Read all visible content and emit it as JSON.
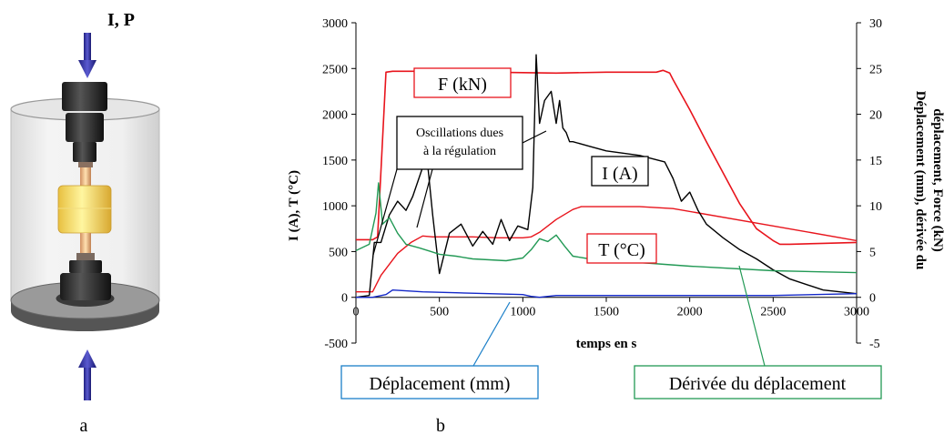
{
  "panel_a": {
    "top_label": "I, P",
    "caption": "a"
  },
  "panel_b": {
    "caption": "b"
  },
  "chart_data": {
    "type": "line",
    "title": "",
    "xlabel": "temps en s",
    "ylabel_left": "I (A), T (°C)",
    "ylabel_right_lines": [
      "Déplacement (mm), dérivée du",
      "déplacement, Force (kN)"
    ],
    "xlim": [
      0,
      3000
    ],
    "ylim_left": [
      -500,
      3000
    ],
    "ylim_right": [
      -5,
      30
    ],
    "x_ticks": [
      "0",
      "500",
      "1000",
      "1500",
      "2000",
      "2500",
      "3000"
    ],
    "y_left_ticks": [
      "-500",
      "0",
      "500",
      "1000",
      "1500",
      "2000",
      "2500",
      "3000"
    ],
    "y_right_ticks": [
      "-5",
      "0",
      "5",
      "10",
      "15",
      "20",
      "25",
      "30"
    ],
    "grid": false,
    "legend": "callout boxes",
    "annotations": {
      "force": "F (kN)",
      "current": "I (A)",
      "temperature": "T (°C)",
      "displacement": "Déplacement (mm)",
      "derivative": "Dérivée du déplacement",
      "oscillations_lines": [
        "Oscillations dues",
        "à la régulation"
      ]
    },
    "colors": {
      "force": "#e8141c",
      "temperature": "#e8141c",
      "current": "#000000",
      "displacement": "#1428c8",
      "derivative": "#229955"
    },
    "series": [
      {
        "key": "force",
        "axis": "right",
        "x": [
          0,
          100,
          130,
          180,
          220,
          400,
          800,
          1200,
          1500,
          1800,
          1840,
          1880,
          1900,
          2000,
          2100,
          2200,
          2300,
          2400,
          2500,
          2540,
          2600,
          2800,
          3000
        ],
        "values": [
          6.3,
          6.3,
          6.6,
          24.6,
          24.7,
          24.7,
          24.6,
          24.5,
          24.6,
          24.6,
          24.8,
          24.5,
          23.8,
          20.5,
          17.0,
          13.6,
          10.2,
          7.5,
          6.2,
          5.8,
          5.8,
          5.9,
          6.0
        ]
      },
      {
        "key": "temperature",
        "axis": "left",
        "x": [
          0,
          100,
          150,
          250,
          330,
          400,
          460,
          560,
          700,
          850,
          1000,
          1050,
          1100,
          1200,
          1300,
          1350,
          1700,
          1900,
          2500,
          3000
        ],
        "values": [
          60,
          60,
          240,
          480,
          600,
          670,
          660,
          660,
          660,
          650,
          650,
          660,
          710,
          850,
          960,
          990,
          990,
          970,
          780,
          620
        ]
      },
      {
        "key": "current",
        "axis": "left",
        "x": [
          0,
          80,
          110,
          150,
          200,
          250,
          300,
          340,
          400,
          430,
          460,
          500,
          560,
          630,
          700,
          760,
          820,
          870,
          920,
          970,
          1030,
          1060,
          1080,
          1100,
          1130,
          1170,
          1200,
          1220,
          1240,
          1260,
          1280,
          1300,
          1400,
          1500,
          1700,
          1850,
          1900,
          1950,
          2000,
          2050,
          2100,
          2200,
          2300,
          2400,
          2500,
          2600,
          2800,
          3000
        ],
        "values": [
          0,
          20,
          600,
          600,
          900,
          1050,
          950,
          1100,
          1420,
          1450,
          900,
          260,
          700,
          800,
          560,
          720,
          580,
          850,
          620,
          780,
          740,
          1200,
          2650,
          1900,
          2150,
          2250,
          1900,
          2150,
          1850,
          1800,
          1700,
          1700,
          1650,
          1600,
          1550,
          1480,
          1300,
          1050,
          1150,
          950,
          800,
          650,
          520,
          420,
          300,
          200,
          80,
          40
        ]
      },
      {
        "key": "derivative",
        "axis": "left",
        "x": [
          0,
          80,
          120,
          135,
          160,
          200,
          250,
          300,
          380,
          450,
          500,
          600,
          700,
          800,
          900,
          1000,
          1050,
          1100,
          1150,
          1200,
          1250,
          1300,
          1400,
          1500,
          1700,
          2000,
          2500,
          3000
        ],
        "values": [
          510,
          580,
          920,
          1250,
          800,
          870,
          700,
          580,
          540,
          500,
          470,
          450,
          420,
          410,
          400,
          430,
          520,
          640,
          610,
          680,
          560,
          450,
          420,
          400,
          380,
          340,
          290,
          270
        ]
      },
      {
        "key": "displacement",
        "axis": "right",
        "x": [
          0,
          100,
          180,
          220,
          400,
          600,
          800,
          1000,
          1050,
          1100,
          1200,
          1500,
          2000,
          2500,
          3000
        ],
        "values": [
          0.0,
          0.0,
          0.3,
          0.8,
          0.6,
          0.5,
          0.4,
          0.3,
          0.1,
          0.0,
          0.2,
          0.2,
          0.2,
          0.2,
          0.4
        ]
      }
    ]
  }
}
